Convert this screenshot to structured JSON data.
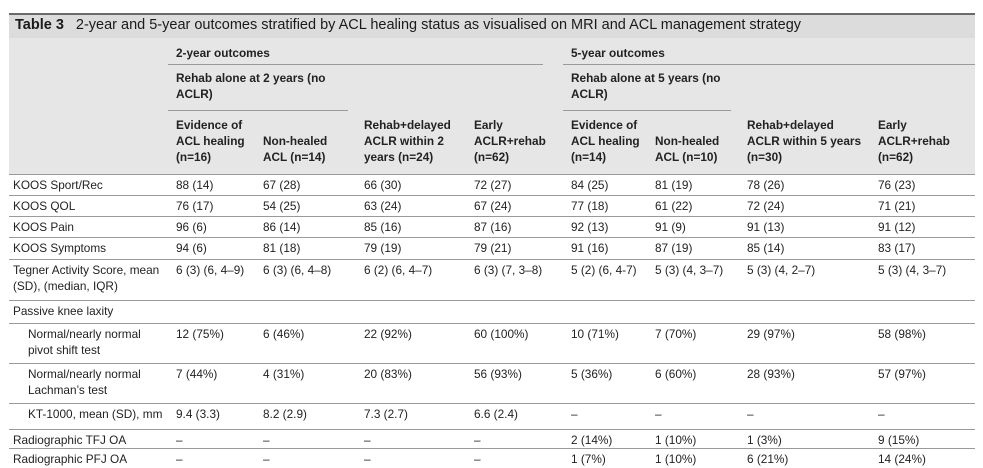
{
  "table": {
    "label": "Table 3",
    "title": "2-year and 5-year outcomes stratified by ACL healing status as visualised on MRI and ACL management strategy",
    "groups": [
      "2-year outcomes",
      "5-year outcomes"
    ],
    "subgroups": [
      "Rehab alone at 2 years (no\nACLR)",
      "Rehab alone at 5 years (no\nACLR)"
    ],
    "columns": [
      "Evidence of\nACL healing\n(n=16)",
      "Non-healed\nACL (n=14)",
      "Rehab+delayed\nACLR within 2\nyears (n=24)",
      "Early\nACLR+rehab\n(n=62)",
      "Evidence of\nACL healing\n(n=14)",
      "Non-healed\nACL (n=10)",
      "Rehab+delayed\nACLR within 5 years\n(n=30)",
      "Early\nACLR+rehab\n(n=62)"
    ],
    "rows": [
      {
        "label": "KOOS Sport/Rec",
        "values": [
          "88 (14)",
          "67 (28)",
          "66 (30)",
          "72 (27)",
          "84 (25)",
          "81 (19)",
          "78 (26)",
          "76 (23)"
        ]
      },
      {
        "label": "KOOS QOL",
        "values": [
          "76 (17)",
          "54 (25)",
          "63 (24)",
          "67 (24)",
          "77 (18)",
          "61 (22)",
          "72 (24)",
          "71 (21)"
        ]
      },
      {
        "label": "KOOS Pain",
        "values": [
          "96 (6)",
          "86 (14)",
          "85 (16)",
          "87 (16)",
          "92 (13)",
          "91 (9)",
          "91 (13)",
          "91 (12)"
        ]
      },
      {
        "label": "KOOS Symptoms",
        "values": [
          "94 (6)",
          "81 (18)",
          "79 (19)",
          "79 (21)",
          "91 (16)",
          "87 (19)",
          "85 (14)",
          "83 (17)"
        ]
      },
      {
        "label": "Tegner Activity Score, mean\n(SD), (median, IQR)",
        "values": [
          "6 (3) (6, 4–9)",
          "6 (3) (6, 4–8)",
          "6 (2) (6, 4–7)",
          "6 (3) (7, 3–8)",
          "5 (2) (6, 4-7)",
          "5 (3) (4, 3–7)",
          "5 (3) (4, 2–7)",
          "5 (3) (4, 3–7)"
        ]
      },
      {
        "label": "Passive knee laxity",
        "values": [
          "",
          "",
          "",
          "",
          "",
          "",
          "",
          ""
        ]
      },
      {
        "label": "Normal/nearly normal\npivot shift test",
        "values": [
          "12 (75%)",
          "6 (46%)",
          "22 (92%)",
          "60 (100%)",
          "10 (71%)",
          "7 (70%)",
          "29 (97%)",
          "58 (98%)"
        ]
      },
      {
        "label": "Normal/nearly normal\nLachman’s test",
        "values": [
          "7 (44%)",
          "4 (31%)",
          "20 (83%)",
          "56 (93%)",
          "5 (36%)",
          "6 (60%)",
          "28 (93%)",
          "57 (97%)"
        ]
      },
      {
        "label": "KT-1000, mean (SD), mm",
        "values": [
          "9.4 (3.3)",
          "8.2 (2.9)",
          "7.3 (2.7)",
          "6.6 (2.4)",
          "–",
          "–",
          "–",
          "–"
        ]
      },
      {
        "label": "Radiographic TFJ OA",
        "values": [
          "–",
          "–",
          "–",
          "–",
          "2 (14%)",
          "1 (10%)",
          "1 (3%)",
          "9 (15%)"
        ]
      },
      {
        "label": "Radiographic PFJ OA",
        "values": [
          "–",
          "–",
          "–",
          "–",
          "1 (7%)",
          "1 (10%)",
          "6 (21%)",
          "14 (24%)"
        ]
      }
    ]
  }
}
